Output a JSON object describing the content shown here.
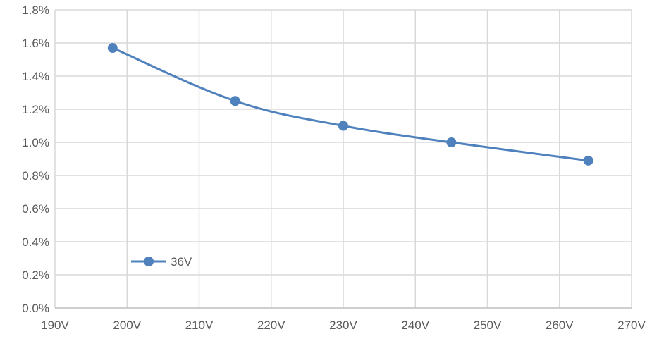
{
  "chart_data": {
    "type": "line",
    "title": "",
    "xlabel": "",
    "ylabel": "",
    "x_ticks": [
      "190V",
      "200V",
      "210V",
      "220V",
      "230V",
      "240V",
      "250V",
      "260V",
      "270V"
    ],
    "y_ticks": [
      "0.0%",
      "0.2%",
      "0.4%",
      "0.6%",
      "0.8%",
      "1.0%",
      "1.2%",
      "1.4%",
      "1.6%",
      "1.8%"
    ],
    "xlim": [
      190,
      270
    ],
    "ylim": [
      0,
      1.8
    ],
    "grid": true,
    "legend_position": "bottom-left",
    "series": [
      {
        "name": "36V",
        "color": "#4f81bd",
        "x": [
          198,
          215,
          230,
          245,
          264
        ],
        "y": [
          1.57,
          1.25,
          1.1,
          1.0,
          0.89
        ]
      }
    ]
  }
}
